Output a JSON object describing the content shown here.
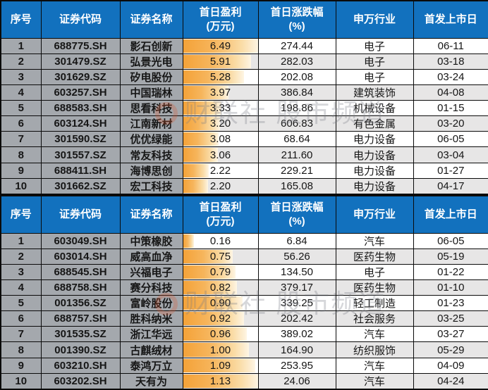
{
  "watermark": {
    "logo": "cailianshe-ring-logo",
    "text": "财联社 股市频道"
  },
  "colors": {
    "header_bg": "#1271BE",
    "header_text": "#FFFFFF",
    "left_cell_bg": "#A4A8AD",
    "stripe_light": "#FFFFFF",
    "stripe_gray": "#E7E6E6",
    "data_bar_orange": "#F4A238",
    "grid_border": "#0A0A0A"
  },
  "chart_data": [
    {
      "type": "table",
      "title": "新股首日盈利排行(上表)",
      "columns": [
        "序号",
        "证券代码",
        "证券名称",
        "首日盈利\n(万元)",
        "首日涨跌幅\n(%)",
        "申万行业",
        "首发上市日"
      ],
      "bar_column_index": 3,
      "bar_max": 6.49,
      "rows": [
        [
          "1",
          "688775.SH",
          "影石创新",
          "6.49",
          "274.44",
          "电子",
          "06-11"
        ],
        [
          "2",
          "301479.SZ",
          "弘景光电",
          "5.91",
          "282.03",
          "电子",
          "03-18"
        ],
        [
          "3",
          "301629.SZ",
          "矽电股份",
          "5.28",
          "202.08",
          "电子",
          "03-24"
        ],
        [
          "4",
          "603257.SH",
          "中国瑞林",
          "3.97",
          "386.84",
          "建筑装饰",
          "04-08"
        ],
        [
          "5",
          "688583.SH",
          "思看科技",
          "3.33",
          "198.86",
          "机械设备",
          "01-15"
        ],
        [
          "6",
          "603124.SH",
          "江南新材",
          "3.20",
          "606.83",
          "有色金属",
          "03-20"
        ],
        [
          "7",
          "301590.SZ",
          "优优绿能",
          "3.08",
          "68.64",
          "电力设备",
          "06-05"
        ],
        [
          "8",
          "301557.SZ",
          "常友科技",
          "3.06",
          "211.60",
          "电力设备",
          "03-04"
        ],
        [
          "9",
          "688411.SH",
          "海博思创",
          "2.22",
          "229.21",
          "电力设备",
          "01-27"
        ],
        [
          "10",
          "301662.SZ",
          "宏工科技",
          "2.20",
          "165.08",
          "电力设备",
          "04-17"
        ]
      ]
    },
    {
      "type": "table",
      "title": "新股首日盈利排行(下表)",
      "columns": [
        "序号",
        "证券代码",
        "证券名称",
        "首日盈利\n(万元)",
        "首日涨跌幅\n(%)",
        "申万行业",
        "首发上市日"
      ],
      "bar_column_index": 3,
      "bar_max": 1.13,
      "rows": [
        [
          "1",
          "603049.SH",
          "中策橡胶",
          "0.16",
          "6.84",
          "汽车",
          "06-05"
        ],
        [
          "2",
          "603014.SH",
          "威高血净",
          "0.75",
          "56.26",
          "医药生物",
          "05-19"
        ],
        [
          "3",
          "688545.SH",
          "兴福电子",
          "0.79",
          "134.50",
          "电子",
          "01-22"
        ],
        [
          "4",
          "688758.SH",
          "赛分科技",
          "0.82",
          "379.17",
          "医药生物",
          "01-10"
        ],
        [
          "5",
          "001356.SZ",
          "富岭股份",
          "0.90",
          "339.25",
          "轻工制造",
          "01-23"
        ],
        [
          "6",
          "688757.SH",
          "胜科纳米",
          "0.92",
          "202.42",
          "社会服务",
          "03-25"
        ],
        [
          "7",
          "301535.SZ",
          "浙江华远",
          "0.96",
          "389.02",
          "汽车",
          "03-27"
        ],
        [
          "8",
          "001390.SZ",
          "古麒绒材",
          "1.00",
          "164.90",
          "纺织服饰",
          "05-29"
        ],
        [
          "9",
          "603210.SH",
          "泰鸿万立",
          "1.09",
          "253.95",
          "汽车",
          "04-09"
        ],
        [
          "10",
          "603202.SH",
          "天有为",
          "1.13",
          "24.06",
          "汽车",
          "04-24"
        ]
      ]
    }
  ]
}
